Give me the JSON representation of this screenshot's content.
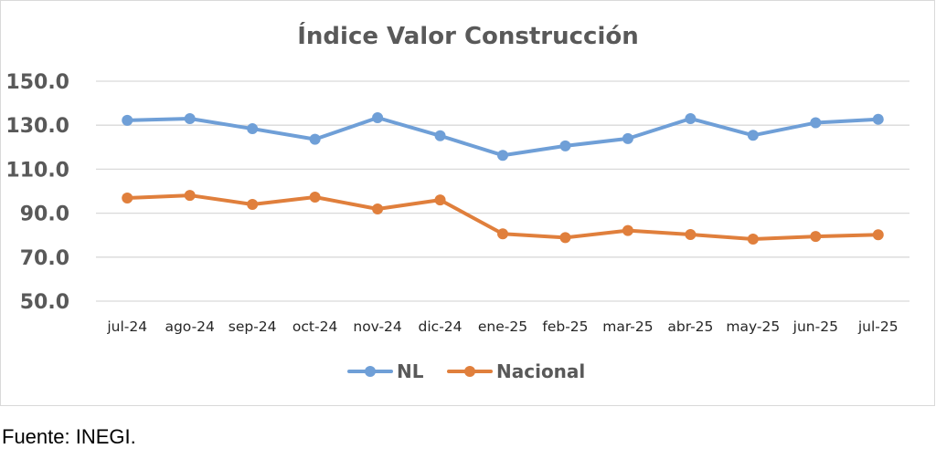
{
  "chart_data": {
    "type": "line",
    "title": "Índice Valor Construcción",
    "categories": [
      "jul-24",
      "ago-24",
      "sep-24",
      "oct-24",
      "nov-24",
      "dic-24",
      "ene-25",
      "feb-25",
      "mar-25",
      "abr-25",
      "may-25",
      "jun-25",
      "jul-25"
    ],
    "series": [
      {
        "name": "NL",
        "color": "#6f9fd7",
        "values": [
          132.2,
          133.0,
          128.4,
          123.6,
          133.4,
          125.2,
          116.3,
          120.6,
          123.9,
          133.0,
          125.4,
          131.1,
          132.7
        ]
      },
      {
        "name": "Nacional",
        "color": "#e07f3c",
        "values": [
          96.9,
          98.1,
          94.0,
          97.3,
          91.9,
          96.0,
          80.6,
          78.9,
          82.1,
          80.3,
          78.2,
          79.4,
          80.2
        ]
      }
    ],
    "yticks": [
      "150.0",
      "130.0",
      "110.0",
      "90.0",
      "70.0",
      "50.0"
    ],
    "ylim": [
      50,
      150
    ],
    "xlabel": "",
    "ylabel": "",
    "legend_position": "bottom",
    "grid": true
  },
  "source_note": "Fuente: INEGI."
}
